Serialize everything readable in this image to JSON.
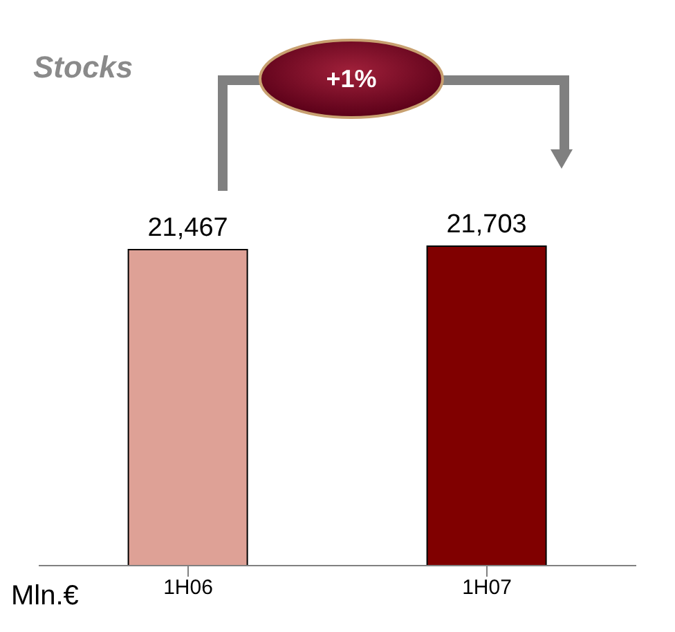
{
  "chart_data": {
    "type": "bar",
    "title": "Stocks",
    "ylabel": "Mln.€",
    "categories": [
      "1H06",
      "1H07"
    ],
    "values": [
      21467,
      21703
    ],
    "colors": [
      "#dea196",
      "#800000"
    ],
    "value_labels": [
      "21,467",
      "21,703"
    ],
    "annotations": [
      "+1%"
    ]
  }
}
